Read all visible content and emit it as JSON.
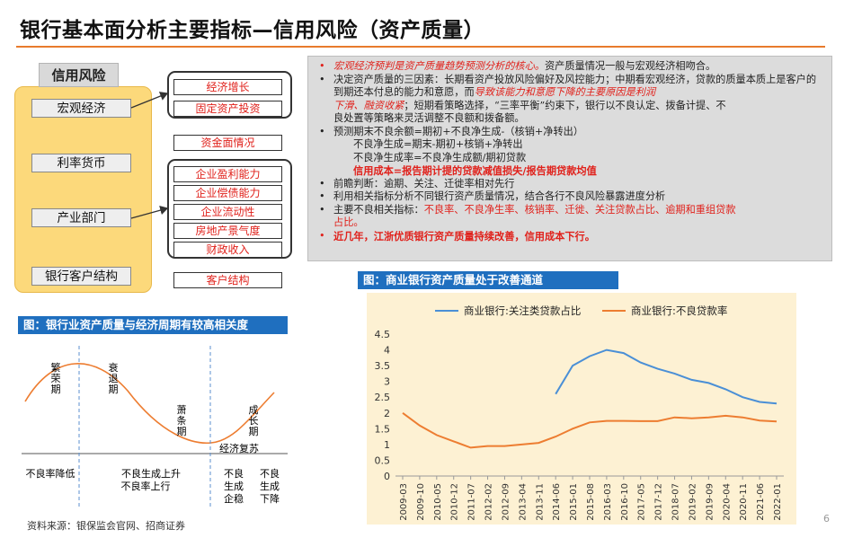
{
  "title": "银行基本面分析主要指标—信用风险（资产质量）",
  "framework": {
    "header": "信用风险",
    "categories": [
      "宏观经济",
      "利率货币",
      "产业部门",
      "银行客户结构"
    ],
    "macro_items": [
      "经济增长",
      "固定资产投资"
    ],
    "monetary_item": "资金面情况",
    "industry_items": [
      "企业盈利能力",
      "企业偿债能力",
      "企业流动性",
      "房地产景气度",
      "财政收入"
    ],
    "client_item": "客户结构"
  },
  "analysis": {
    "b1": "宏观经济预判是资产质量趋势预测分析的核心。",
    "b1_tail": "资产质量情况一般与宏观经济相吻合。",
    "b2_a": "决定资产质量的三因素：长期看资产投放风险偏好及风控能力；中期看宏观经济，贷款的质",
    "b2_b": "量本质上是客户的到期还本付息的能力和意愿，而",
    "b2_red1": "导致该能力和意愿下降的主要原因是利润",
    "b2_red2": "下滑、融资收紧",
    "b2_c": "；短期看策略选择，“三率平衡”约束下，银行以不良认定、拨备计提、不",
    "b2_d": "良处置等策略来灵活调整不良额和拨备额。",
    "b3": "预测期末不良余额=期初+不良净生成-（核销+净转出）",
    "b3_l2": "不良净生成=期末-期初+核销+净转出",
    "b3_l3": "不良净生成率=不良净生成额/期初贷款",
    "cost_line": "信用成本=报告期计提的贷款减值损失/报告期贷款均值",
    "b4": "前瞻判断：逾期、关注、迁徙率相对先行",
    "b5": "利用相关指标分析不同银行资产质量情况，结合各行不良风险暴露进度分析",
    "b6_a": "主要不良相关指标：",
    "b6_red1": "不良率、不良净生率、核销率、迁徙、关注贷款占比、逾期和重组贷款",
    "b6_red2": "占比。",
    "b7": "近几年，江浙优质银行资产质量持续改善，信用成本下行。"
  },
  "cycle": {
    "header": "图：银行业资产质量与经济周期有较高相关度",
    "phases": [
      "繁荣期",
      "衰退期",
      "萧条期",
      "成长期"
    ],
    "recovery": "经济复苏",
    "bottom": [
      "不良率降低",
      "不良生成上升",
      "不良率上行",
      "不良生成企稳",
      "不良生成下降"
    ]
  },
  "chart_header": "图：商业银行资产质量处于改善通道",
  "chart_data": {
    "type": "line",
    "categories": [
      "2009-03",
      "2009-10",
      "2010-05",
      "2010-12",
      "2011-07",
      "2012-02",
      "2012-09",
      "2013-04",
      "2013-11",
      "2014-06",
      "2015-01",
      "2015-08",
      "2016-03",
      "2016-10",
      "2017-05",
      "2017-12",
      "2018-07",
      "2019-02",
      "2019-09",
      "2020-04",
      "2020-11",
      "2021-06",
      "2022-01"
    ],
    "series": [
      {
        "name": "商业银行:关注类贷款占比",
        "color": "#4a8fd6",
        "values": [
          null,
          null,
          null,
          null,
          null,
          null,
          null,
          null,
          null,
          2.6,
          3.5,
          3.8,
          4.0,
          3.9,
          3.6,
          3.4,
          3.25,
          3.05,
          2.95,
          2.75,
          2.5,
          2.35,
          2.3
        ]
      },
      {
        "name": "商业银行:不良贷款率",
        "color": "#ed7d31",
        "values": [
          2.0,
          1.6,
          1.3,
          1.1,
          0.9,
          0.95,
          0.95,
          1.0,
          1.05,
          1.25,
          1.5,
          1.7,
          1.75,
          1.75,
          1.74,
          1.74,
          1.86,
          1.83,
          1.86,
          1.91,
          1.86,
          1.76,
          1.73
        ]
      }
    ],
    "ylim": [
      0,
      4.5
    ],
    "yticks": [
      "0",
      "0.5",
      "1",
      "1.5",
      "2",
      "2.5",
      "3",
      "3.5",
      "4",
      "4.5"
    ],
    "grid": false,
    "legend": "top"
  },
  "source": "资料来源：银保监会官网、招商证券",
  "page": "6"
}
